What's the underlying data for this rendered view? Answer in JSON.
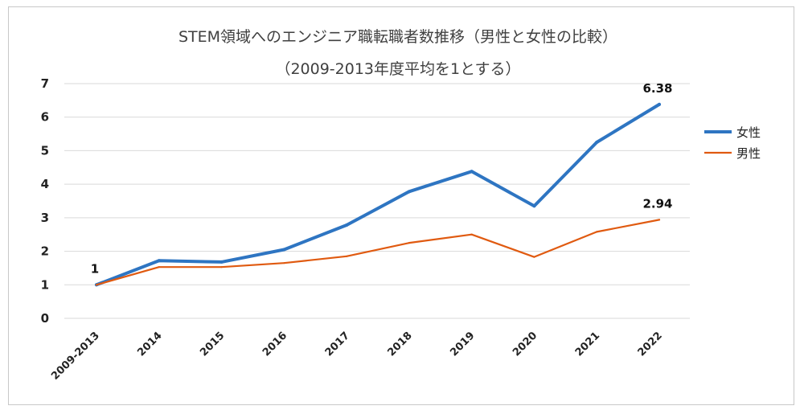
{
  "chart_data": {
    "type": "line",
    "title": "STEM領域へのエンジニア職転職者数推移（男性と女性の比較）",
    "subtitle": "（2009-2013年度平均を1とする）",
    "categories": [
      "2009-2013",
      "2014",
      "2015",
      "2016",
      "2017",
      "2018",
      "2019",
      "2020",
      "2021",
      "2022"
    ],
    "ylim": [
      0,
      7
    ],
    "yticks": [
      "0",
      "1",
      "2",
      "3",
      "4",
      "5",
      "6",
      "7"
    ],
    "grid": true,
    "legend_position": "right",
    "series": [
      {
        "name": "女性",
        "color": "#2e75c2",
        "values": [
          1,
          1.72,
          1.68,
          2.05,
          2.78,
          3.78,
          4.38,
          3.35,
          5.25,
          6.38
        ]
      },
      {
        "name": "男性",
        "color": "#e05a10",
        "values": [
          1,
          1.53,
          1.53,
          1.65,
          1.85,
          2.25,
          2.5,
          1.83,
          2.58,
          2.94
        ]
      }
    ],
    "data_labels": [
      {
        "series": 0,
        "index": 0,
        "text": "1"
      },
      {
        "series": 0,
        "index": 9,
        "text": "6.38"
      },
      {
        "series": 1,
        "index": 9,
        "text": "2.94"
      }
    ]
  }
}
